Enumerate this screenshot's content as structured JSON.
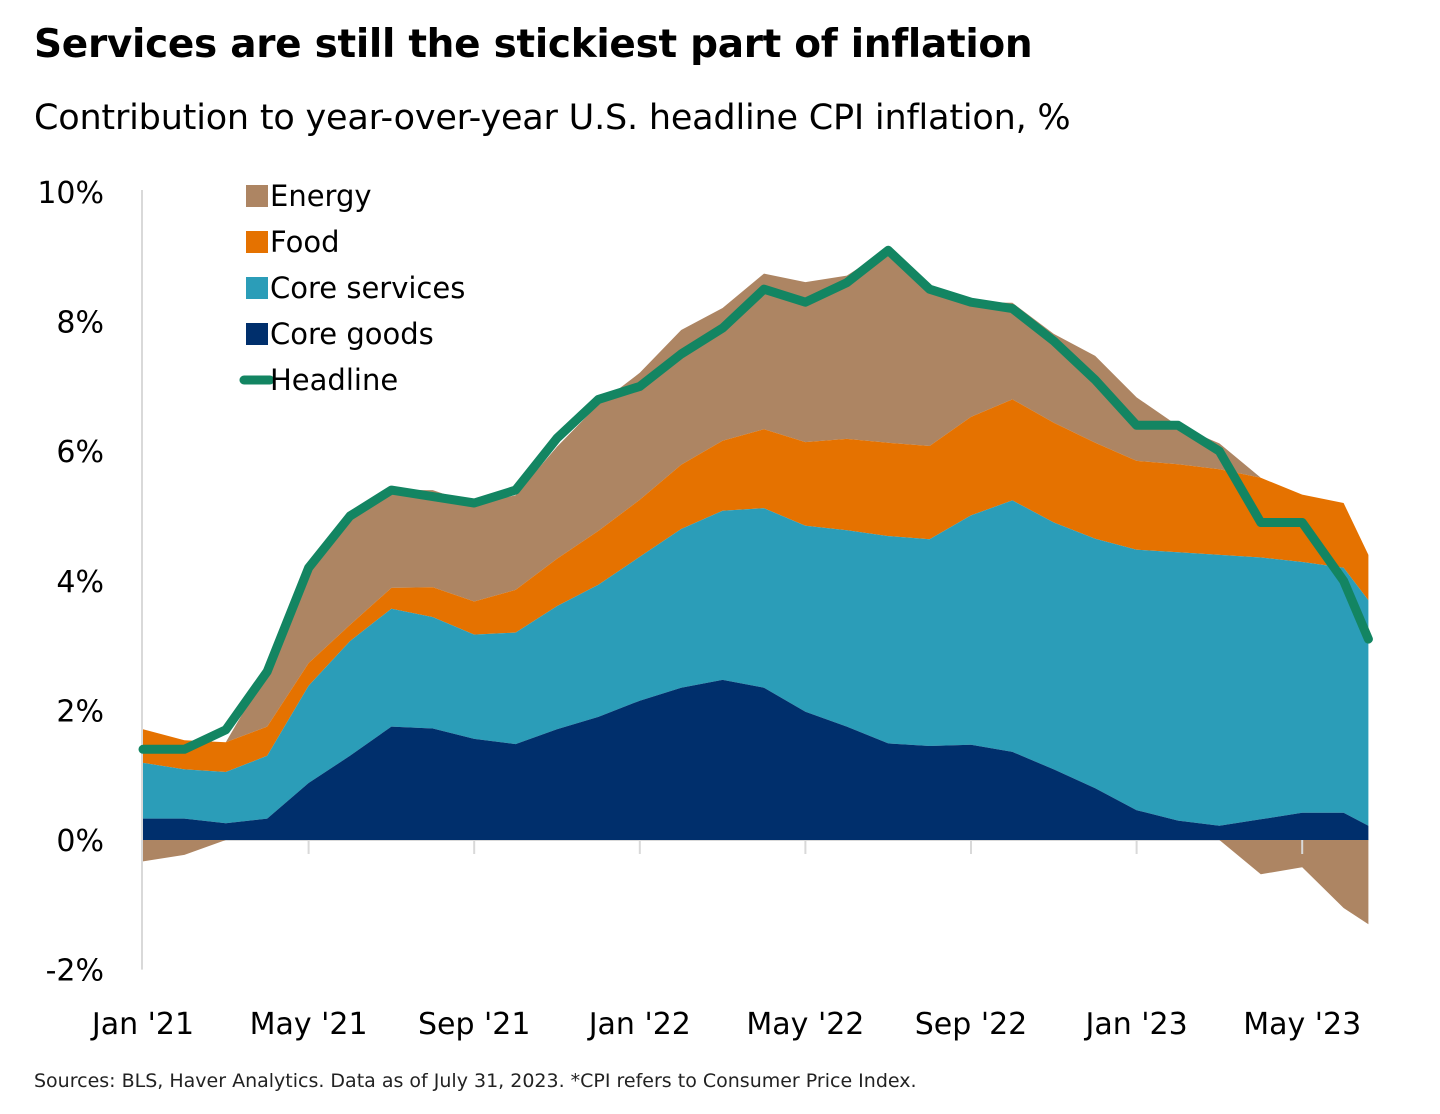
{
  "title": "Services are still the stickiest part of inflation",
  "subtitle": "Contribution to year-over-year U.S. headline CPI inflation, %",
  "footnote": "Sources: BLS, Haver Analytics. Data as of July 31, 2023. *CPI refers to Consumer Price Index.",
  "colors": {
    "energy": "#ad8563",
    "food": "#e57200",
    "core_services": "#2b9db8",
    "core_goods": "#002f6c",
    "headline": "#138562",
    "axis": "#d9d9d9"
  },
  "chart_data": {
    "type": "area",
    "stacked": true,
    "x": [
      "Jan '21",
      "Feb '21",
      "Mar '21",
      "Apr '21",
      "May '21",
      "Jun '21",
      "Jul '21",
      "Aug '21",
      "Sep '21",
      "Oct '21",
      "Nov '21",
      "Dec '21",
      "Jan '22",
      "Feb '22",
      "Mar '22",
      "Apr '22",
      "May '22",
      "Jun '22",
      "Jul '22",
      "Aug '22",
      "Sep '22",
      "Oct '22",
      "Nov '22",
      "Dec '22",
      "Jan '23",
      "Feb '23",
      "Mar '23",
      "Apr '23",
      "May '23",
      "Jun '23"
    ],
    "x_tick_labels": [
      "Jan '21",
      "May '21",
      "Sep '21",
      "Jan '22",
      "May '22",
      "Sep '22",
      "Jan '23",
      "May '23"
    ],
    "y_tick_labels": [
      "10%",
      "8%",
      "6%",
      "4%",
      "2%",
      "0%",
      "-2%"
    ],
    "ylim": [
      -2,
      10
    ],
    "legend_position": "top-left",
    "series": [
      {
        "name": "Core goods",
        "key": "core_goods",
        "type": "area",
        "values": [
          0.33,
          0.33,
          0.26,
          0.33,
          0.88,
          1.3,
          1.75,
          1.72,
          1.56,
          1.48,
          1.71,
          1.9,
          2.15,
          2.35,
          2.47,
          2.35,
          1.98,
          1.75,
          1.49,
          1.45,
          1.47,
          1.36,
          1.09,
          0.8,
          0.46,
          0.3,
          0.22,
          0.32,
          0.42,
          0.42
        ]
      },
      {
        "name": "Core services",
        "key": "core_services",
        "type": "area",
        "values": [
          0.86,
          0.76,
          0.79,
          0.97,
          1.5,
          1.77,
          1.82,
          1.72,
          1.61,
          1.72,
          1.9,
          2.04,
          2.22,
          2.45,
          2.61,
          2.77,
          2.87,
          3.03,
          3.2,
          3.19,
          3.54,
          3.88,
          3.81,
          3.85,
          4.02,
          4.14,
          4.18,
          4.04,
          3.87,
          3.78
        ]
      },
      {
        "name": "Food",
        "key": "food",
        "type": "area",
        "values": [
          0.52,
          0.45,
          0.46,
          0.45,
          0.35,
          0.25,
          0.32,
          0.46,
          0.51,
          0.66,
          0.73,
          0.83,
          0.88,
          0.99,
          1.08,
          1.22,
          1.29,
          1.41,
          1.44,
          1.44,
          1.52,
          1.56,
          1.54,
          1.48,
          1.37,
          1.36,
          1.32,
          1.23,
          1.04,
          1.0
        ]
      },
      {
        "name": "Energy",
        "key": "energy",
        "type": "area",
        "values": [
          -0.33,
          -0.23,
          0.0,
          0.85,
          1.5,
          1.64,
          1.51,
          1.5,
          1.5,
          1.46,
          1.73,
          1.95,
          1.96,
          2.08,
          2.05,
          2.4,
          2.47,
          2.52,
          2.99,
          2.42,
          1.77,
          1.49,
          1.37,
          1.34,
          0.98,
          0.59,
          0.4,
          -0.53,
          -0.42,
          -1.05
        ]
      },
      {
        "name": "Headline",
        "key": "headline",
        "type": "line",
        "values": [
          1.4,
          1.4,
          1.7,
          2.6,
          4.2,
          5.0,
          5.4,
          5.3,
          5.2,
          5.4,
          6.2,
          6.8,
          7.0,
          7.5,
          7.9,
          8.5,
          8.3,
          8.6,
          9.1,
          8.5,
          8.3,
          8.2,
          7.7,
          7.1,
          6.4,
          6.4,
          6.0,
          4.9,
          4.9,
          4.0
        ]
      }
    ],
    "tail": {
      "x": "Jul '23",
      "core_goods": 0.22,
      "core_services": 3.48,
      "food": 0.7,
      "energy": -1.3,
      "headline": 3.1
    }
  }
}
